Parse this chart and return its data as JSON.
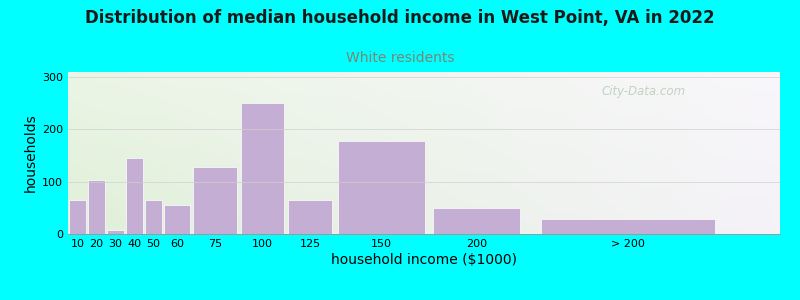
{
  "title": "Distribution of median household income in West Point, VA in 2022",
  "subtitle": "White residents",
  "xlabel": "household income ($1000)",
  "ylabel": "households",
  "background_color": "#00ffff",
  "bar_color": "#c4aed4",
  "bar_edge_color": "#ffffff",
  "categories": [
    "10",
    "20",
    "30",
    "40",
    "50",
    "60",
    "75",
    "100",
    "125",
    "150",
    "200",
    "> 200"
  ],
  "values": [
    65,
    103,
    8,
    145,
    65,
    55,
    128,
    250,
    65,
    178,
    50,
    28
  ],
  "bar_widths": [
    10,
    10,
    10,
    10,
    10,
    15,
    25,
    25,
    25,
    50,
    50,
    100
  ],
  "bar_lefts": [
    5,
    15,
    25,
    35,
    45,
    55,
    70,
    95,
    120,
    145,
    195,
    250
  ],
  "ylim": [
    0,
    310
  ],
  "xlim": [
    5,
    380
  ],
  "yticks": [
    0,
    100,
    200,
    300
  ],
  "title_fontsize": 12,
  "subtitle_fontsize": 10,
  "subtitle_color": "#778877",
  "axis_label_fontsize": 10,
  "tick_label_fontsize": 8,
  "watermark": "City-Data.com",
  "watermark_color": "#bbccbb",
  "xtick_labels": [
    "10",
    "20",
    "30",
    "40",
    "50",
    "60",
    "75",
    "100",
    "125",
    "150",
    "200",
    "> 200"
  ],
  "bg_left_color": "#e0f0d8",
  "bg_right_color": "#f0eef5"
}
